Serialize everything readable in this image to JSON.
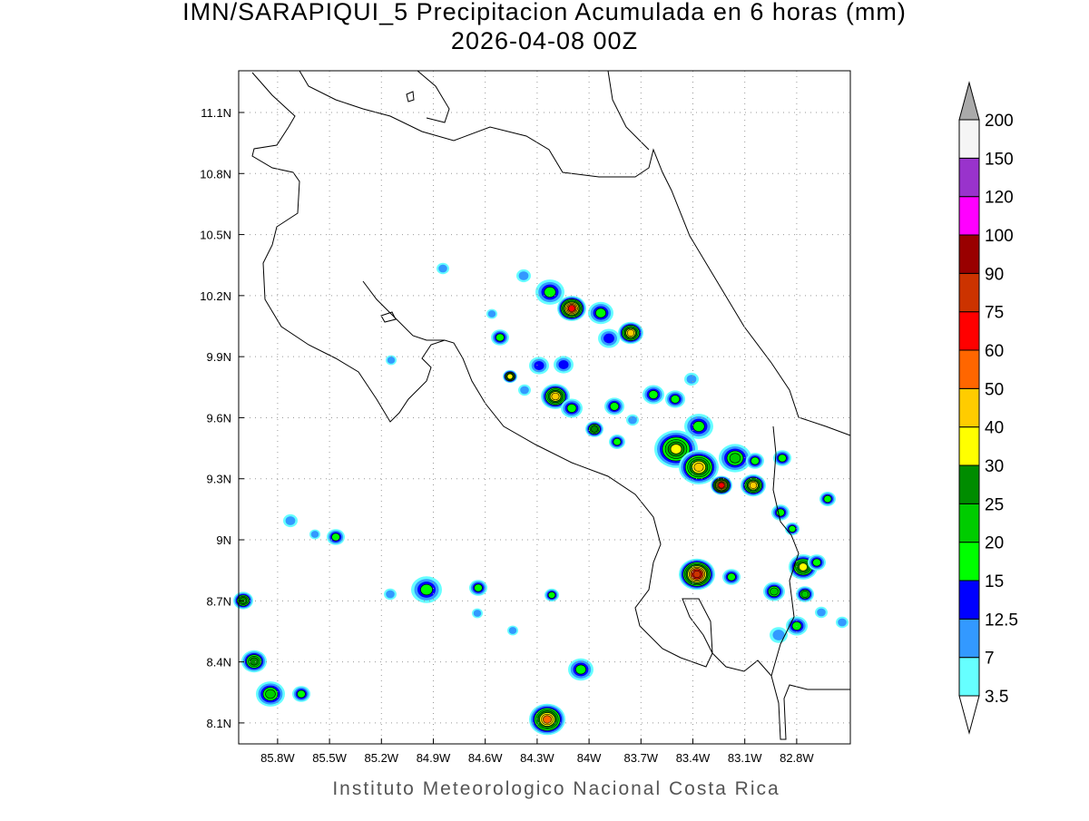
{
  "header": {
    "title": "IMN/SARAPIQUI_5 Precipitacion Acumulada en 6 horas (mm)",
    "subtitle": "2026-04-08 00Z"
  },
  "map": {
    "lonlim": [
      -86.025,
      -82.49
    ],
    "latlim": [
      7.997,
      11.305
    ],
    "lonticks": [
      {
        "value": -85.8,
        "label": "85.8W"
      },
      {
        "value": -85.5,
        "label": "85.5W"
      },
      {
        "value": -85.2,
        "label": "85.2W"
      },
      {
        "value": -84.9,
        "label": "84.9W"
      },
      {
        "value": -84.6,
        "label": "84.6W"
      },
      {
        "value": -84.3,
        "label": "84.3W"
      },
      {
        "value": -84,
        "label": "84W"
      },
      {
        "value": -83.7,
        "label": "83.7W"
      },
      {
        "value": -83.4,
        "label": "83.4W"
      },
      {
        "value": -83.1,
        "label": "83.1W"
      },
      {
        "value": -82.8,
        "label": "82.8W"
      }
    ],
    "latticks": [
      {
        "value": 11.1,
        "label": "11.1N"
      },
      {
        "value": 10.8,
        "label": "10.8N"
      },
      {
        "value": 10.5,
        "label": "10.5N"
      },
      {
        "value": 10.2,
        "label": "10.2N"
      },
      {
        "value": 9.9,
        "label": "9.9N"
      },
      {
        "value": 9.6,
        "label": "9.6N"
      },
      {
        "value": 9.3,
        "label": "9.3N"
      },
      {
        "value": 9,
        "label": "9N"
      },
      {
        "value": 8.7,
        "label": "8.7N"
      },
      {
        "value": 8.4,
        "label": "8.4N"
      },
      {
        "value": 8.1,
        "label": "8.1N"
      }
    ],
    "grid": true
  },
  "colorbar": {
    "levels": [
      3.5,
      7,
      12.5,
      15,
      20,
      25,
      30,
      40,
      50,
      60,
      75,
      90,
      100,
      120,
      150,
      200
    ],
    "bin_colors": [
      "#66ffff",
      "#3399ff",
      "#0000ff",
      "#00ff00",
      "#00cc00",
      "#008c00",
      "#ffff00",
      "#ffcc00",
      "#ff6600",
      "#ff0000",
      "#cc3300",
      "#990000",
      "#ff00ff",
      "#9933cc",
      "#f5f5f5"
    ],
    "under_color": "#ffffff",
    "over_color": "#aaaaaa"
  },
  "footer": "Instituto Meteorologico Nacional Costa Rica"
}
